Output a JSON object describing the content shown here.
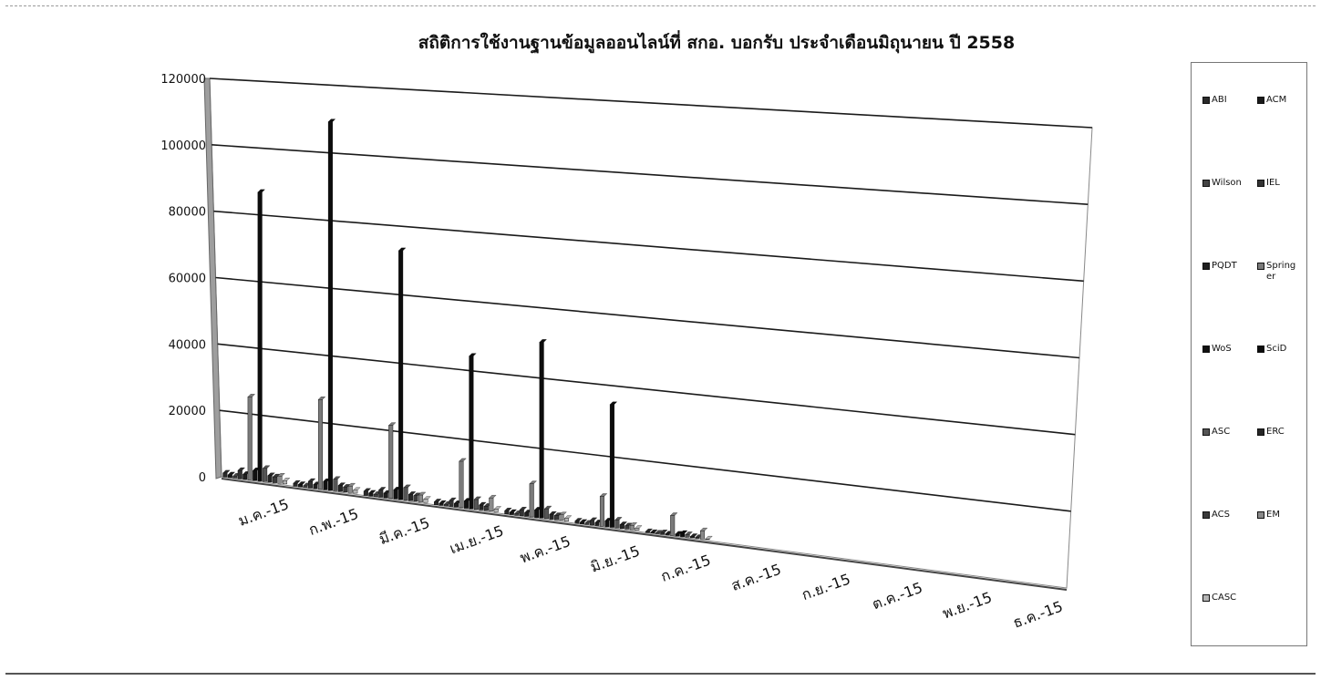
{
  "chart_data": {
    "type": "bar",
    "title": "สถิติการใช้งานฐานข้อมูลออนไลน์ที่ สกอ. บอกรับ ประจำเดือนมิถุนายน ปี 2558",
    "xlabel": "",
    "ylabel": "",
    "ylim": [
      0,
      120000
    ],
    "yticks": [
      0,
      20000,
      40000,
      60000,
      80000,
      100000,
      120000
    ],
    "grid": true,
    "legend_position": "right",
    "three_d": true,
    "categories": [
      "ม.ค.-15",
      "ก.พ.-15",
      "มี.ค.-15",
      "เม.ย.-15",
      "พ.ค.-15",
      "มิ.ย.-15",
      "ก.ค.-15",
      "ส.ค.-15",
      "ก.ย.-15",
      "ต.ค.-15",
      "พ.ย.-15",
      "ธ.ค.-15"
    ],
    "series": [
      {
        "name": "ABI",
        "color": "#2a2a2a",
        "values": [
          1200,
          900,
          1300,
          900,
          1000,
          700,
          300,
          0,
          0,
          0,
          0,
          0
        ]
      },
      {
        "name": "ACM",
        "color": "#1a1a1a",
        "values": [
          800,
          700,
          900,
          600,
          700,
          500,
          200,
          0,
          0,
          0,
          0,
          0
        ]
      },
      {
        "name": "Wilson",
        "color": "#444444",
        "values": [
          600,
          500,
          700,
          500,
          500,
          400,
          200,
          0,
          0,
          0,
          0,
          0
        ]
      },
      {
        "name": "IEL",
        "color": "#333333",
        "values": [
          2500,
          2000,
          2200,
          1800,
          1800,
          1400,
          500,
          0,
          0,
          0,
          0,
          0
        ]
      },
      {
        "name": "PQDT",
        "color": "#202020",
        "values": [
          1500,
          1200,
          1400,
          1100,
          1100,
          900,
          300,
          0,
          0,
          0,
          0,
          0
        ]
      },
      {
        "name": "Springer",
        "color": "#7a7a7a",
        "values": [
          25000,
          27000,
          22000,
          14000,
          10000,
          9000,
          6000,
          0,
          0,
          0,
          0,
          0
        ]
      },
      {
        "name": "WoS",
        "color": "#111111",
        "values": [
          3000,
          2500,
          2800,
          2200,
          2300,
          1800,
          600,
          0,
          0,
          0,
          0,
          0
        ]
      },
      {
        "name": "SciD",
        "color": "#0d0d0d",
        "values": [
          87000,
          111000,
          75000,
          46000,
          53000,
          37000,
          1000,
          0,
          0,
          0,
          0,
          0
        ]
      },
      {
        "name": "ASC",
        "color": "#555555",
        "values": [
          4000,
          3500,
          3800,
          3000,
          3000,
          2400,
          800,
          0,
          0,
          0,
          0,
          0
        ]
      },
      {
        "name": "ERC",
        "color": "#262626",
        "values": [
          2000,
          1800,
          1900,
          1500,
          1500,
          1200,
          400,
          0,
          0,
          0,
          0,
          0
        ]
      },
      {
        "name": "ACS",
        "color": "#3a3a3a",
        "values": [
          1800,
          1500,
          1700,
          1300,
          1300,
          1000,
          300,
          0,
          0,
          0,
          0,
          0
        ]
      },
      {
        "name": "EM",
        "color": "#8a8a8a",
        "values": [
          2200,
          2000,
          2100,
          4000,
          1700,
          1300,
          2500,
          0,
          0,
          0,
          0,
          0
        ]
      },
      {
        "name": "CASC",
        "color": "#b5b5b5",
        "values": [
          1000,
          900,
          1000,
          800,
          800,
          600,
          200,
          0,
          0,
          0,
          0,
          0
        ]
      }
    ]
  }
}
